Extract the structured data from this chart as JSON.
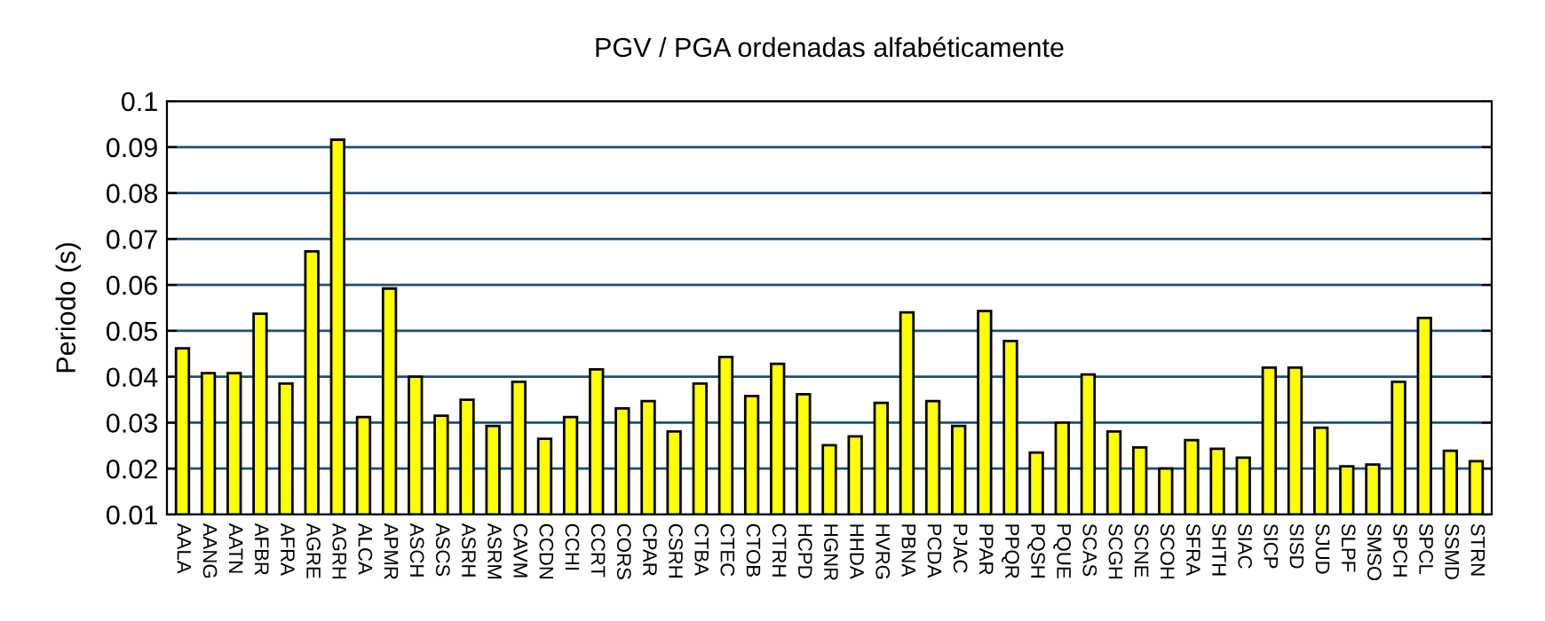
{
  "chart_data": {
    "type": "bar",
    "title": "PGV / PGA ordenadas alfabéticamente",
    "ylabel": "Periodo (s)",
    "categories": [
      "AALA",
      "AANG",
      "AATN",
      "AFBR",
      "AFRA",
      "AGRE",
      "AGRH",
      "ALCA",
      "APMR",
      "ASCH",
      "ASCS",
      "ASRH",
      "ASRM",
      "CAVM",
      "CCDN",
      "CCHI",
      "CCRT",
      "CORS",
      "CPAR",
      "CSRH",
      "CTBA",
      "CTEC",
      "CTOB",
      "CTRH",
      "HCPD",
      "HGNR",
      "HHDA",
      "HVRG",
      "PBNA",
      "PCDA",
      "PJAC",
      "PPAR",
      "PPQR",
      "PQSH",
      "PQUE",
      "SCAS",
      "SCGH",
      "SCNE",
      "SCOH",
      "SFRA",
      "SHTH",
      "SIAC",
      "SICP",
      "SISD",
      "SJUD",
      "SLPF",
      "SMSO",
      "SPCH",
      "SPCL",
      "SSMD",
      "STRN"
    ],
    "values": [
      0.0462,
      0.0408,
      0.0408,
      0.0537,
      0.0385,
      0.0673,
      0.0916,
      0.0312,
      0.0592,
      0.04,
      0.0315,
      0.035,
      0.0293,
      0.0389,
      0.0265,
      0.0312,
      0.0416,
      0.0331,
      0.0347,
      0.0281,
      0.0385,
      0.0443,
      0.0358,
      0.0428,
      0.0362,
      0.0251,
      0.027,
      0.0343,
      0.054,
      0.0347,
      0.0293,
      0.0543,
      0.0478,
      0.0235,
      0.03,
      0.0405,
      0.0281,
      0.0246,
      0.02,
      0.0262,
      0.0243,
      0.0224,
      0.042,
      0.042,
      0.0289,
      0.0205,
      0.0209,
      0.0389,
      0.0528,
      0.0239,
      0.0216
    ],
    "color": "#ffff00",
    "ylim": [
      0.01,
      0.1
    ],
    "yticks": [
      0.01,
      0.02,
      0.03,
      0.04,
      0.05,
      0.06,
      0.07,
      0.08,
      0.09,
      0.1
    ],
    "grid": "y",
    "legend": false
  }
}
